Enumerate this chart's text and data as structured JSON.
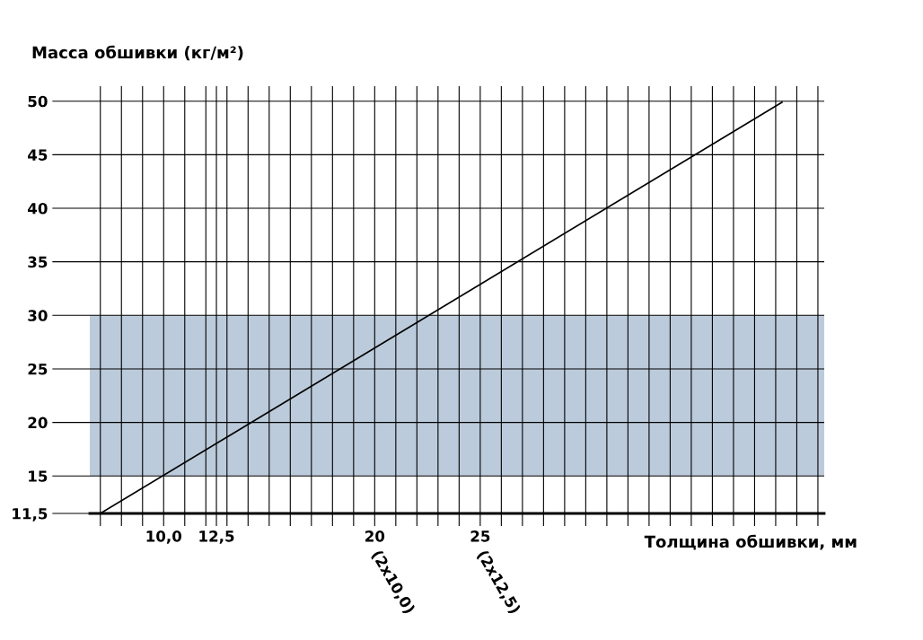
{
  "chart_data": {
    "type": "line",
    "ylabel": "Масса обшивки (кг/м²)",
    "xlabel": "Толщина обшивки, мм",
    "series": [
      {
        "x": [
          7,
          39.3
        ],
        "values": [
          11.5,
          49.9
        ],
        "color": "#000000"
      }
    ],
    "xlim": [
      6.5,
      41.3
    ],
    "ylim": [
      11.5,
      51.4
    ],
    "xticks": [
      {
        "value": 7,
        "label": null
      },
      {
        "value": 8,
        "label": null
      },
      {
        "value": 9,
        "label": null
      },
      {
        "value": 10,
        "label": "10,0"
      },
      {
        "value": 11,
        "label": null
      },
      {
        "value": 12,
        "label": null
      },
      {
        "value": 12.5,
        "label": "12,5"
      },
      {
        "value": 13,
        "label": null
      },
      {
        "value": 14,
        "label": null
      },
      {
        "value": 15,
        "label": null
      },
      {
        "value": 16,
        "label": null
      },
      {
        "value": 17,
        "label": null
      },
      {
        "value": 18,
        "label": null
      },
      {
        "value": 19,
        "label": null
      },
      20,
      {
        "value": 21,
        "label": null
      },
      {
        "value": 22,
        "label": null
      },
      {
        "value": 23,
        "label": null
      },
      {
        "value": 24,
        "label": null
      },
      25,
      {
        "value": 26,
        "label": null
      },
      {
        "value": 27,
        "label": null
      },
      {
        "value": 28,
        "label": null
      },
      {
        "value": 29,
        "label": null
      },
      {
        "value": 30,
        "label": null
      },
      {
        "value": 31,
        "label": null
      },
      {
        "value": 32,
        "label": null
      },
      {
        "value": 33,
        "label": null
      },
      {
        "value": 34,
        "label": null
      },
      {
        "value": 35,
        "label": null
      },
      {
        "value": 36,
        "label": null
      },
      {
        "value": 37,
        "label": null
      },
      {
        "value": 38,
        "label": null
      },
      {
        "value": 39,
        "label": null
      },
      {
        "value": 40,
        "label": null
      },
      {
        "value": 41,
        "label": null
      }
    ],
    "yticks": [
      {
        "value": 11.5,
        "label": "11,5"
      },
      15,
      20,
      25,
      30,
      35,
      40,
      45,
      50
    ],
    "bands": [
      {
        "axis": "y",
        "from": 15,
        "to": 30,
        "color": "#bccbdb"
      }
    ],
    "annotations": [
      "(2x10,0)",
      "(2x12,5)"
    ],
    "grid": true,
    "marker": "none",
    "line_style": "solid",
    "legend": false
  }
}
